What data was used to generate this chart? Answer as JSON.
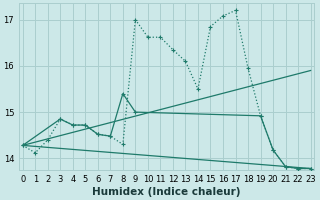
{
  "bg_color": "#cce8e8",
  "grid_color": "#aacece",
  "line_color": "#1e7a6a",
  "xlabel": "Humidex (Indice chaleur)",
  "xlim": [
    -0.3,
    23.3
  ],
  "ylim": [
    13.75,
    17.35
  ],
  "yticks": [
    14,
    15,
    16,
    17
  ],
  "xticks": [
    0,
    1,
    2,
    3,
    4,
    5,
    6,
    7,
    8,
    9,
    10,
    11,
    12,
    13,
    14,
    15,
    16,
    17,
    18,
    19,
    20,
    21,
    22,
    23
  ],
  "tick_fontsize": 6,
  "xlabel_fontsize": 7.5,
  "s0x": [
    0,
    1,
    2,
    3,
    4,
    5,
    6,
    7,
    8,
    9,
    10,
    11,
    12,
    13,
    14,
    15,
    16,
    17,
    18,
    19,
    20,
    21,
    22,
    23
  ],
  "s0y": [
    14.28,
    14.12,
    14.4,
    14.85,
    14.72,
    14.72,
    14.52,
    14.48,
    14.3,
    17.0,
    16.62,
    16.62,
    16.35,
    16.1,
    15.5,
    16.85,
    17.08,
    17.2,
    15.95,
    14.92,
    14.18,
    13.82,
    13.78,
    13.78
  ],
  "s1x": [
    0,
    3,
    4,
    5,
    6,
    7,
    8,
    9,
    19,
    20,
    21,
    22,
    23
  ],
  "s1y": [
    14.28,
    14.85,
    14.72,
    14.72,
    14.52,
    14.48,
    15.4,
    15.0,
    14.92,
    14.18,
    13.82,
    13.78,
    13.78
  ],
  "s2x": [
    0,
    23
  ],
  "s2y": [
    14.28,
    15.9
  ],
  "s3x": [
    0,
    23
  ],
  "s3y": [
    14.28,
    13.78
  ]
}
